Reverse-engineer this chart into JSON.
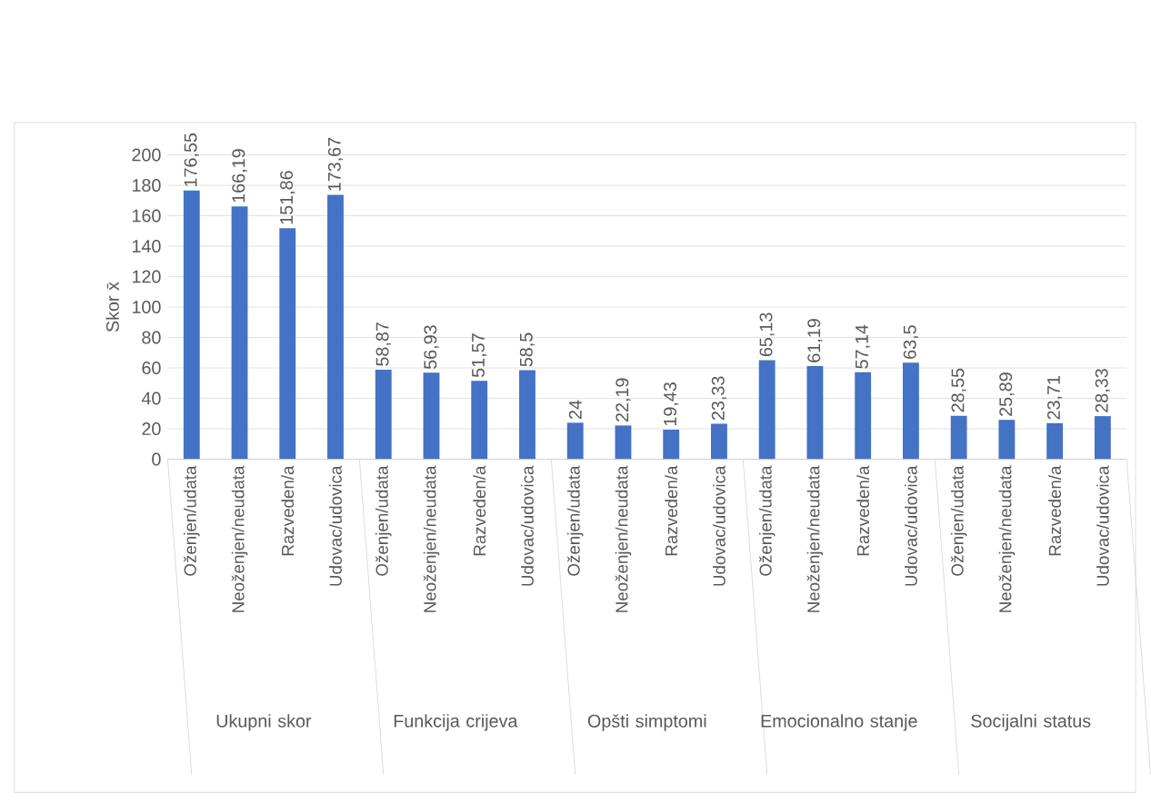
{
  "chart_data": {
    "type": "bar",
    "ylabel": "Skor x̄",
    "categories": [
      "Oženjen/udata",
      "Neoženjen/neudata",
      "Razveden/a",
      "Udovac/udovica",
      "Oženjen/udata",
      "Neoženjen/neudata",
      "Razveden/a",
      "Udovac/udovica",
      "Oženjen/udata",
      "Neoženjen/neudata",
      "Razveden/a",
      "Udovac/udovica",
      "Oženjen/udata",
      "Neoženjen/neudata",
      "Razveden/a",
      "Udovac/udovica",
      "Oženjen/udata",
      "Neoženjen/neudata",
      "Razveden/a",
      "Udovac/udovica"
    ],
    "values": [
      176.55,
      166.19,
      151.86,
      173.67,
      58.87,
      56.93,
      51.57,
      58.5,
      24,
      22.19,
      19.43,
      23.33,
      65.13,
      61.19,
      57.14,
      63.5,
      28.55,
      25.89,
      23.71,
      28.33
    ],
    "value_labels": [
      "176,55",
      "166,19",
      "151,86",
      "173,67",
      "58,87",
      "56,93",
      "51,57",
      "58,5",
      "24",
      "22,19",
      "19,43",
      "23,33",
      "65,13",
      "61,19",
      "57,14",
      "63,5",
      "28,55",
      "25,89",
      "23,71",
      "28,33"
    ],
    "color": "#4472c4",
    "ylim": [
      0,
      200
    ],
    "yticks": [
      0,
      20,
      40,
      60,
      80,
      100,
      120,
      140,
      160,
      180,
      200
    ],
    "grid": "y",
    "annotations": [
      "Ukupni skor",
      "Funkcija crijeva",
      "Opšti simptomi",
      "Emocionalno stanje",
      "Socijalni status"
    ]
  }
}
